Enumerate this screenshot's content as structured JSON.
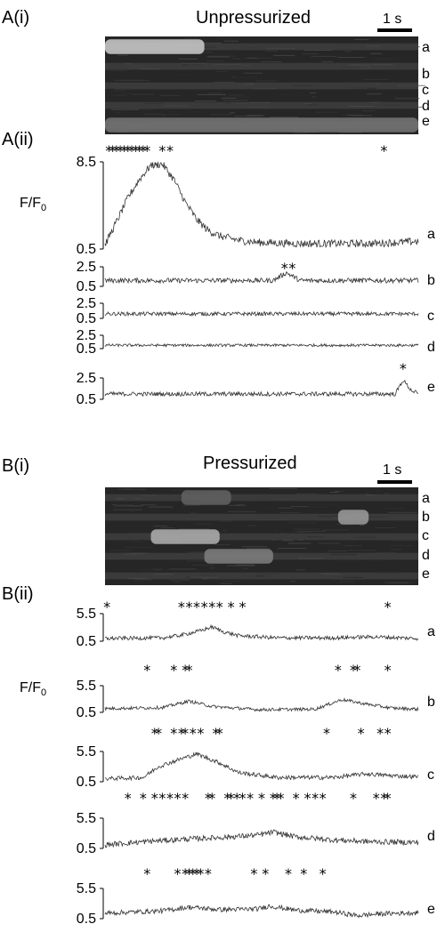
{
  "panels": {
    "A": {
      "image_label": "A(i)",
      "plot_label": "A(ii)",
      "title": "Unpressurized",
      "scale_bar": "1 s",
      "row_labels": [
        "a",
        "b",
        "c",
        "d",
        "e"
      ],
      "ylabel_main": "F/F",
      "ylabel_sub": "0"
    },
    "B": {
      "image_label": "B(i)",
      "plot_label": "B(ii)",
      "title": "Pressurized",
      "scale_bar": "1 s",
      "row_labels": [
        "a",
        "b",
        "c",
        "d",
        "e"
      ],
      "ylabel_main": "F/F",
      "ylabel_sub": "0"
    }
  },
  "chart_data": [
    {
      "type": "line",
      "panel": "A(ii)",
      "x_range_s": [
        0,
        8.2
      ],
      "traces": [
        {
          "label": "a",
          "y_ticks": [
            "8.5",
            "0.5"
          ],
          "ylim": [
            0.5,
            8.5
          ],
          "events_s": [
            0.1,
            0.2,
            0.3,
            0.4,
            0.5,
            0.6,
            0.7,
            0.8,
            0.9,
            1.0,
            1.1,
            1.5,
            1.7,
            7.3
          ],
          "profile_x": [
            0,
            0.3,
            0.6,
            0.9,
            1.2,
            1.5,
            1.8,
            2.1,
            2.4,
            2.7,
            3.0,
            3.5,
            4.0,
            5.0,
            6.0,
            7.0,
            8.2
          ],
          "profile_y": [
            0.9,
            3.0,
            5.2,
            6.9,
            8.2,
            8.3,
            6.9,
            4.8,
            3.2,
            2.2,
            1.7,
            1.3,
            1.1,
            1.0,
            1.0,
            1.0,
            1.2
          ],
          "noise": 0.35
        },
        {
          "label": "b",
          "y_ticks": [
            "2.5",
            "0.5"
          ],
          "ylim": [
            0.5,
            2.5
          ],
          "events_s": [
            4.7,
            4.9
          ],
          "profile_x": [
            0,
            4.4,
            4.75,
            5.1,
            8.2
          ],
          "profile_y": [
            1.1,
            1.1,
            1.9,
            1.1,
            1.1
          ],
          "noise": 0.25
        },
        {
          "label": "c",
          "y_ticks": [
            "2.5",
            "0.5"
          ],
          "ylim": [
            0.5,
            2.5
          ],
          "events_s": [],
          "profile_x": [
            0,
            8.2
          ],
          "profile_y": [
            1.1,
            1.1
          ],
          "noise": 0.25
        },
        {
          "label": "d",
          "y_ticks": [
            "2.5",
            "0.5"
          ],
          "ylim": [
            0.5,
            2.5
          ],
          "events_s": [],
          "profile_x": [
            0,
            8.2
          ],
          "profile_y": [
            1.0,
            1.0
          ],
          "noise": 0.2
        },
        {
          "label": "e",
          "y_ticks": [
            "2.5",
            "0.5"
          ],
          "ylim": [
            0.5,
            2.5
          ],
          "events_s": [
            7.8
          ],
          "profile_x": [
            0,
            7.6,
            7.8,
            8.0,
            8.2
          ],
          "profile_y": [
            1.0,
            1.0,
            2.3,
            1.4,
            1.0
          ],
          "noise": 0.2
        }
      ]
    },
    {
      "type": "line",
      "panel": "B(ii)",
      "x_range_s": [
        0,
        8.2
      ],
      "traces": [
        {
          "label": "a",
          "y_ticks": [
            "5.5",
            "0.5"
          ],
          "ylim": [
            0.5,
            5.5
          ],
          "events_s": [
            0.05,
            2.0,
            2.2,
            2.4,
            2.6,
            2.8,
            3.0,
            3.3,
            3.6,
            7.4
          ],
          "profile_x": [
            0,
            1.5,
            2.0,
            2.5,
            2.8,
            3.1,
            3.5,
            4.5,
            6.0,
            7.0,
            8.2
          ],
          "profile_y": [
            1.0,
            1.1,
            1.6,
            2.4,
            3.1,
            2.2,
            1.5,
            1.1,
            1.1,
            1.3,
            1.0
          ],
          "noise": 0.35
        },
        {
          "label": "b",
          "y_ticks": [
            "5.5",
            "0.5"
          ],
          "ylim": [
            0.5,
            5.5
          ],
          "events_s": [
            1.1,
            1.8,
            2.1,
            2.2,
            6.1,
            6.5,
            6.6,
            7.4
          ],
          "profile_x": [
            0,
            1.5,
            2.2,
            2.8,
            4.0,
            5.5,
            6.2,
            6.8,
            7.5,
            8.2
          ],
          "profile_y": [
            1.2,
            1.4,
            2.6,
            1.6,
            1.0,
            1.1,
            2.9,
            2.1,
            1.3,
            1.1
          ],
          "noise": 0.3
        },
        {
          "label": "c",
          "y_ticks": [
            "5.5",
            "0.5"
          ],
          "ylim": [
            0.5,
            5.5
          ],
          "events_s": [
            1.3,
            1.4,
            1.8,
            2.0,
            2.1,
            2.3,
            2.5,
            2.9,
            3.0,
            5.8,
            6.7,
            7.2,
            7.4
          ],
          "profile_x": [
            0,
            1.0,
            1.4,
            2.0,
            2.4,
            3.0,
            3.5,
            4.5,
            6.0,
            6.8,
            7.5,
            8.2
          ],
          "profile_y": [
            1.0,
            1.2,
            3.0,
            4.3,
            5.1,
            3.6,
            2.0,
            1.2,
            1.2,
            1.8,
            1.5,
            1.3
          ],
          "noise": 0.35
        },
        {
          "label": "d",
          "y_ticks": [
            "5.5",
            "0.5"
          ],
          "ylim": [
            0.5,
            5.5
          ],
          "events_s": [
            0.6,
            1.0,
            1.3,
            1.5,
            1.7,
            1.9,
            2.1,
            2.7,
            2.8,
            3.2,
            3.3,
            3.45,
            3.6,
            3.8,
            4.1,
            4.4,
            4.5,
            4.6,
            5.0,
            5.3,
            5.5,
            5.7,
            6.5,
            7.1,
            7.3,
            7.4
          ],
          "profile_x": [
            0,
            1.0,
            2.0,
            3.0,
            4.0,
            4.4,
            5.0,
            6.0,
            7.0,
            8.2
          ],
          "profile_y": [
            1.1,
            1.6,
            2.0,
            2.3,
            2.7,
            3.2,
            2.4,
            1.9,
            1.6,
            1.5
          ],
          "noise": 0.45
        },
        {
          "label": "e",
          "y_ticks": [
            "5.5",
            "0.5"
          ],
          "ylim": [
            0.5,
            5.5
          ],
          "events_s": [
            1.1,
            1.9,
            2.1,
            2.2,
            2.3,
            2.4,
            2.5,
            2.7,
            3.9,
            4.2,
            4.8,
            5.2,
            5.7
          ],
          "profile_x": [
            0,
            1.5,
            2.2,
            3.0,
            4.0,
            4.3,
            5.0,
            6.0,
            6.6,
            7.2,
            8.2
          ],
          "profile_y": [
            1.4,
            1.8,
            2.4,
            2.0,
            2.1,
            2.6,
            1.9,
            1.6,
            1.0,
            1.3,
            1.5
          ],
          "noise": 0.4
        }
      ]
    }
  ],
  "kymographs": [
    {
      "panel": "A(i)",
      "rows": 5,
      "blobs": [
        {
          "row": 0,
          "t0": 0.0,
          "t1": 2.6,
          "intensity": 0.75
        },
        {
          "row": 4,
          "t0": 0.0,
          "t1": 8.2,
          "intensity": 0.3
        }
      ]
    },
    {
      "panel": "B(i)",
      "rows": 5,
      "blobs": [
        {
          "row": 2,
          "t0": 1.2,
          "t1": 3.0,
          "intensity": 0.6
        },
        {
          "row": 3,
          "t0": 2.6,
          "t1": 4.4,
          "intensity": 0.35
        },
        {
          "row": 1,
          "t0": 6.1,
          "t1": 6.9,
          "intensity": 0.5
        },
        {
          "row": 0,
          "t0": 2.0,
          "t1": 3.3,
          "intensity": 0.2
        }
      ]
    }
  ]
}
